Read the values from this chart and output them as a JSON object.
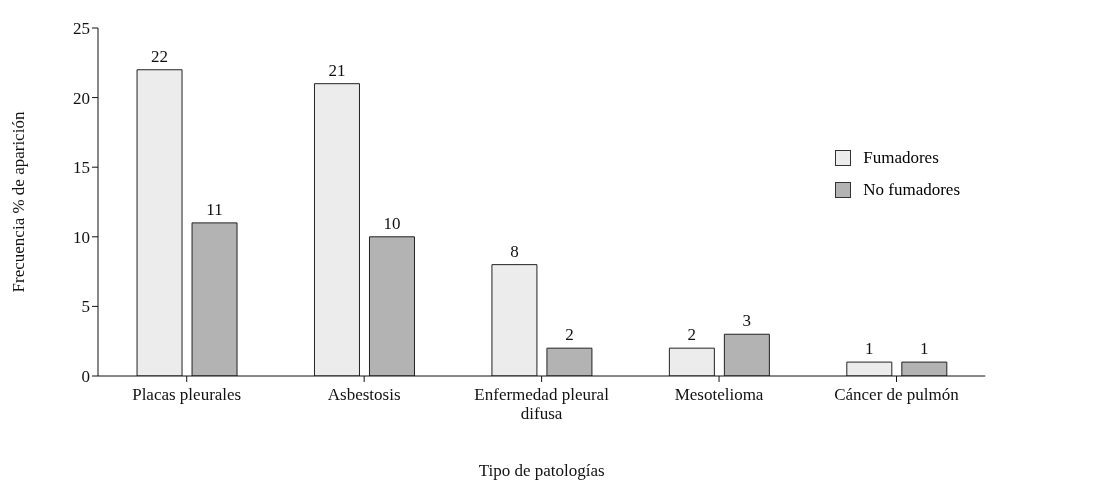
{
  "chart_data": {
    "type": "bar",
    "xlabel": "Tipo de patologías",
    "ylabel": "Frecuencia % de aparición",
    "categories": [
      "Placas pleurales",
      "Asbestosis",
      "Enfermedad pleural difusa",
      "Mesotelioma",
      "Cáncer de pulmón"
    ],
    "series": [
      {
        "name": "Fumadores",
        "color": "#ececec",
        "values": [
          22,
          21,
          8,
          2,
          1
        ],
        "value_labels": [
          "22",
          "21",
          "8",
          "2",
          "1"
        ]
      },
      {
        "name": "No fumadores",
        "color": "#b3b3b3",
        "values": [
          11,
          10,
          2,
          3,
          1
        ],
        "value_labels": [
          "11",
          "10",
          "2",
          "3",
          "1"
        ]
      }
    ],
    "ylim": [
      0,
      25
    ],
    "yticks": [
      0,
      5,
      10,
      15,
      20,
      25
    ],
    "grid": false,
    "legend": "top right"
  }
}
